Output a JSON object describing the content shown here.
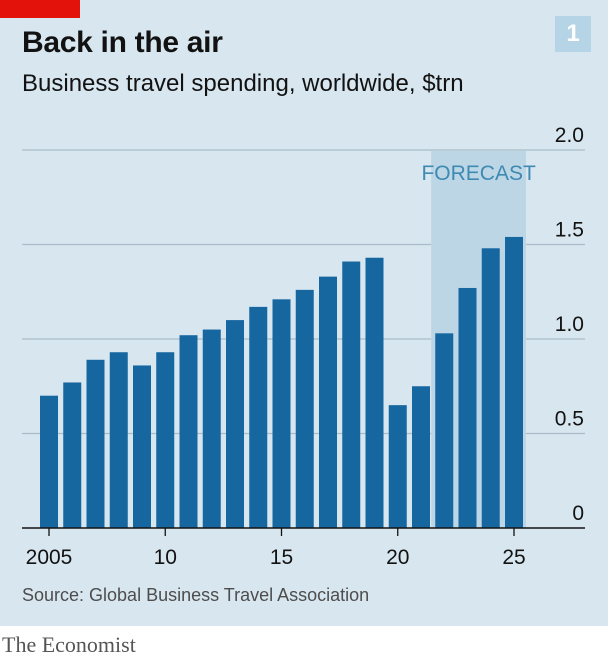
{
  "header": {
    "chart_number": "1",
    "title": "Back in the air",
    "subtitle": "Business travel spending, worldwide, $trn"
  },
  "footer": {
    "source": "Source: Global Business Travel Association",
    "brand": "The Economist"
  },
  "colors": {
    "bar": "#1666a0",
    "forecast_band": "#bcd6e6",
    "forecast_text": "#3f8ab2",
    "panel_background": "#d7e6ef",
    "brand_red": "#e3120b",
    "gridline": "#a9bcc8"
  },
  "chart_data": {
    "type": "bar",
    "title": "Back in the air",
    "subtitle": "Business travel spending, worldwide, $trn",
    "x": [
      2005,
      2006,
      2007,
      2008,
      2009,
      2010,
      2011,
      2012,
      2013,
      2014,
      2015,
      2016,
      2017,
      2018,
      2019,
      2020,
      2021,
      2022,
      2023,
      2024,
      2025
    ],
    "values": [
      0.7,
      0.77,
      0.89,
      0.93,
      0.86,
      0.93,
      1.02,
      1.05,
      1.1,
      1.17,
      1.21,
      1.26,
      1.33,
      1.41,
      1.43,
      0.65,
      0.75,
      1.03,
      1.27,
      1.48,
      1.54
    ],
    "x_tick_labels": [
      {
        "x": 2005,
        "label": "2005"
      },
      {
        "x": 2010,
        "label": "10"
      },
      {
        "x": 2015,
        "label": "15"
      },
      {
        "x": 2020,
        "label": "20"
      },
      {
        "x": 2025,
        "label": "25"
      }
    ],
    "y_ticks": [
      0,
      0.5,
      1.0,
      1.5,
      2.0
    ],
    "y_tick_labels": [
      "0",
      "0.5",
      "1.0",
      "1.5",
      "2.0"
    ],
    "ylim": [
      0,
      2.0
    ],
    "y_axis_side": "right",
    "grid": true,
    "forecast": {
      "label": "FORECAST",
      "from": 2022,
      "to": 2025
    }
  }
}
